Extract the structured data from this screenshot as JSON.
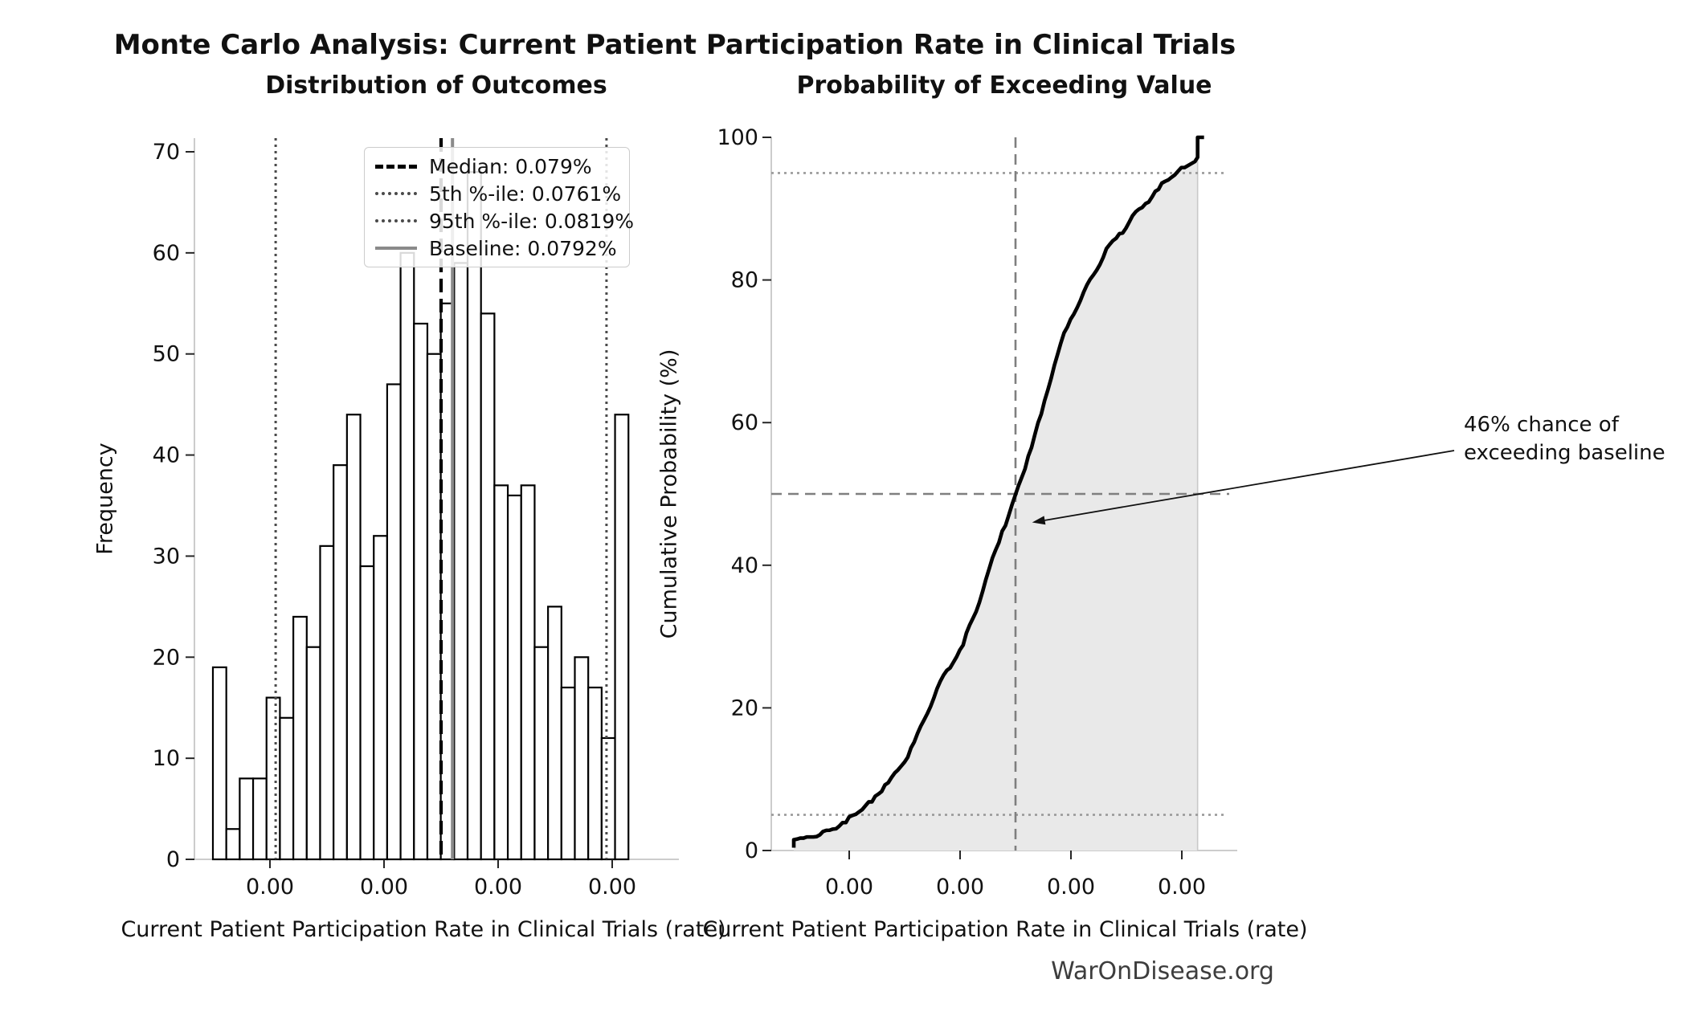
{
  "figure": {
    "suptitle": "Monte Carlo Analysis: Current Patient Participation Rate in Clinical Trials",
    "footer": "WarOnDisease.org"
  },
  "left_plot": {
    "title": "Distribution of Outcomes",
    "xlabel": "Current Patient Participation Rate in Clinical Trials (rate)",
    "ylabel": "Frequency"
  },
  "right_plot": {
    "title": "Probability of Exceeding Value",
    "xlabel": "Current Patient Participation Rate in Clinical Trials (rate)",
    "ylabel": "Cumulative Probability (%)",
    "annotation_line1": "46% chance of",
    "annotation_line2": "exceeding baseline"
  },
  "legend": {
    "items": [
      {
        "label": "Median: 0.079%",
        "style": "dashed-black"
      },
      {
        "label": "5th %-ile: 0.0761%",
        "style": "dotted-gray"
      },
      {
        "label": "95th %-ile: 0.0819%",
        "style": "dotted-gray"
      },
      {
        "label": "Baseline: 0.0792%",
        "style": "solid-gray"
      }
    ]
  },
  "colors": {
    "bar_fill": "#ffffff",
    "bar_edge": "#000000",
    "median_line": "#000000",
    "percentile_line": "#4a4a4a",
    "baseline_line": "#8a8a8a",
    "cdf_line": "#000000",
    "cdf_fill": "#e9e9e9",
    "cdf_fill_edge": "#c9c9c9",
    "crosshair": "#7f7f7f",
    "dotted_ref": "#999999",
    "spine": "#cccccc",
    "tick": "#262626",
    "text": "#111111",
    "footer_text": "#3d3d3d"
  },
  "chart_data": [
    {
      "type": "bar",
      "subtype": "histogram",
      "title": "Distribution of Outcomes",
      "xlabel": "Current Patient Participation Rate in Clinical Trials (rate)",
      "ylabel": "Frequency",
      "bin_start": 0.075,
      "bin_width": 0.000235,
      "frequencies": [
        19,
        3,
        8,
        8,
        16,
        14,
        24,
        21,
        31,
        39,
        44,
        29,
        32,
        47,
        60,
        53,
        50,
        55,
        59,
        68,
        54,
        37,
        36,
        37,
        21,
        25,
        17,
        20,
        17,
        12,
        44
      ],
      "x_tick_values": [
        0.076,
        0.078,
        0.08,
        0.082
      ],
      "x_tick_labels": [
        "0.00",
        "0.00",
        "0.00",
        "0.00"
      ],
      "y_tick_values": [
        0,
        10,
        20,
        30,
        40,
        50,
        60,
        70
      ],
      "y_tick_labels": [
        "0",
        "10",
        "20",
        "30",
        "40",
        "50",
        "60",
        "70"
      ],
      "xlim": [
        0.07468,
        0.08317
      ],
      "ylim": [
        0,
        71.3
      ],
      "grid": false,
      "legend_position": "upper-center",
      "markers": {
        "median": 0.079,
        "p5": 0.0761,
        "p95": 0.0819,
        "baseline": 0.0792
      }
    },
    {
      "type": "line",
      "subtype": "empirical-cdf",
      "title": "Probability of Exceeding Value",
      "xlabel": "Current Patient Participation Rate in Clinical Trials (rate)",
      "ylabel": "Cumulative Probability (%)",
      "bin_start": 0.075,
      "bin_width": 0.000235,
      "cumulative_percent": [
        1.9,
        2.2,
        3.0,
        3.8,
        5.4,
        6.8,
        9.2,
        11.3,
        14.4,
        18.3,
        22.7,
        25.6,
        28.8,
        33.5,
        39.5,
        44.8,
        49.8,
        55.3,
        61.2,
        68.0,
        73.4,
        77.1,
        80.7,
        84.4,
        86.5,
        89.0,
        90.7,
        92.7,
        94.4,
        95.6,
        100.0
      ],
      "x_tick_values": [
        0.076,
        0.078,
        0.08,
        0.082
      ],
      "x_tick_labels": [
        "0.00",
        "0.00",
        "0.00",
        "0.00"
      ],
      "y_tick_values": [
        0,
        20,
        40,
        60,
        80,
        100
      ],
      "y_tick_labels": [
        "0",
        "20",
        "40",
        "60",
        "80",
        "100"
      ],
      "xlim": [
        0.07459,
        0.083
      ],
      "ylim": [
        0,
        100
      ],
      "grid": false,
      "shaded_area": true,
      "reference_lines": {
        "dotted_h": [
          5,
          95
        ],
        "dashed_h": 50,
        "dashed_v": 0.079
      },
      "annotation": {
        "text": "46% chance of exceeding baseline",
        "target_x": 0.0793,
        "target_y": 46
      }
    }
  ]
}
